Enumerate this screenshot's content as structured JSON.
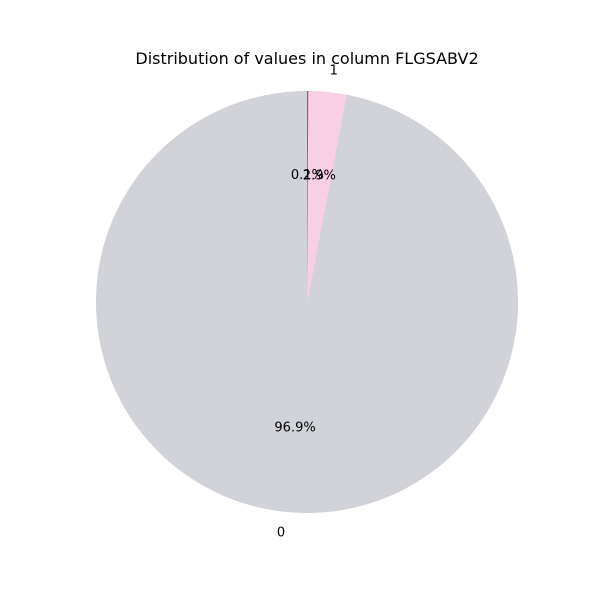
{
  "chart_data": {
    "type": "pie",
    "title": "Distribution of values in column FLGSABV2",
    "slices": [
      {
        "label": "0",
        "value": 96.9,
        "pct_label": "96.9%",
        "color": "#d1d3d9"
      },
      {
        "label": "1",
        "value": 2.9,
        "pct_label": "2.9%",
        "color": "#f9cfe6"
      },
      {
        "label": "",
        "value": 0.1,
        "pct_label": "0.1%",
        "color": "#d63a7d"
      }
    ],
    "start_angle_deg": 90,
    "direction": "counterclockwise"
  }
}
